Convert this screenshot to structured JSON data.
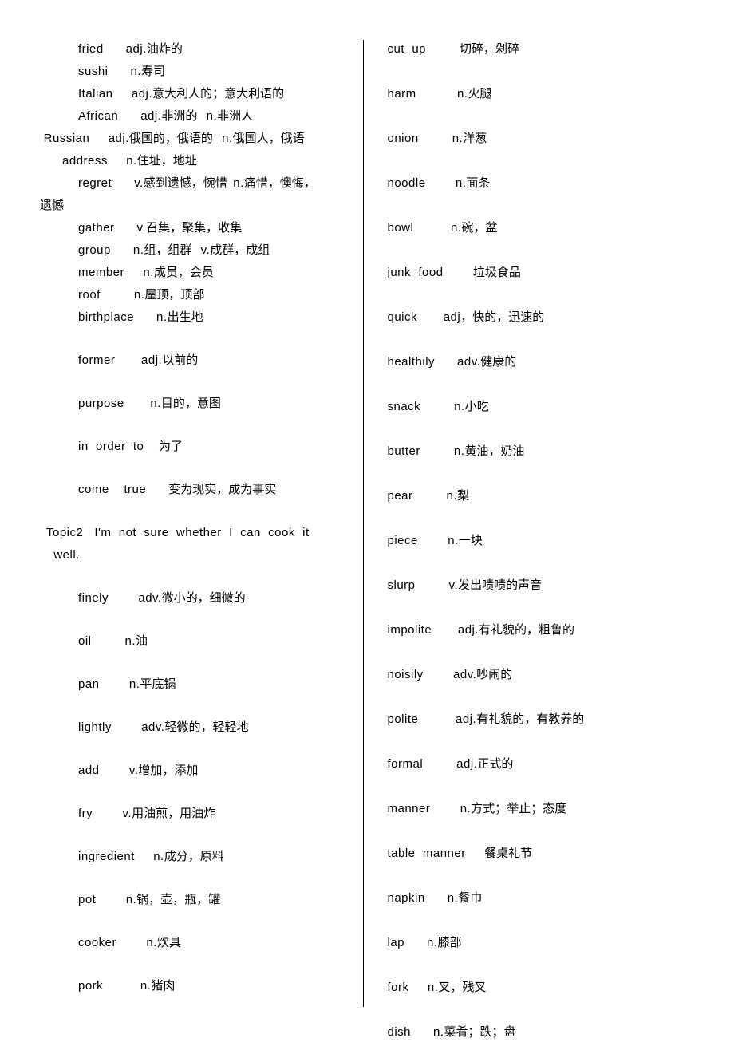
{
  "left": [
    {
      "cls": "indent1 gap-s",
      "parts": [
        [
          "latin",
          "fried      adj."
        ],
        [
          "",
          "油炸的"
        ]
      ]
    },
    {
      "cls": "indent1 gap-s",
      "parts": [
        [
          "latin",
          "sushi      n."
        ],
        [
          "",
          "寿司"
        ]
      ]
    },
    {
      "cls": "indent1 gap-s",
      "parts": [
        [
          "latin",
          "Italian     adj."
        ],
        [
          "",
          "意大利人的；意大利语的"
        ]
      ]
    },
    {
      "cls": "indent1 gap-s",
      "parts": [
        [
          "latin",
          "African      adj."
        ],
        [
          "",
          "非洲的   "
        ],
        [
          "latin",
          "n."
        ],
        [
          "",
          "非洲人"
        ]
      ]
    },
    {
      "cls": "indent0 gap-s",
      "parts": [
        [
          "latin",
          " Russian     adj."
        ],
        [
          "",
          "俄国的，俄语的   "
        ],
        [
          "latin",
          "n."
        ],
        [
          "",
          "俄国人，俄语"
        ]
      ]
    },
    {
      "cls": "indent0 gap-s",
      "parts": [
        [
          "latin",
          "      address     n."
        ],
        [
          "",
          "住址，地址"
        ]
      ]
    },
    {
      "cls": "indent1 gap-s",
      "parts": [
        [
          "latin",
          "regret      v."
        ],
        [
          "",
          "感到遗憾，惋惜  "
        ],
        [
          "latin",
          "n."
        ],
        [
          "",
          "痛惜，懊悔，"
        ]
      ]
    },
    {
      "cls": "indent0 gap-s",
      "parts": [
        [
          "",
          "遗憾"
        ]
      ]
    },
    {
      "cls": "indent1 gap-s",
      "parts": [
        [
          "latin",
          "gather      v."
        ],
        [
          "",
          "召集，聚集，收集"
        ]
      ]
    },
    {
      "cls": "indent1 gap-s",
      "parts": [
        [
          "latin",
          "group      n."
        ],
        [
          "",
          "组，组群   "
        ],
        [
          "latin",
          "v."
        ],
        [
          "",
          "成群，成组"
        ]
      ]
    },
    {
      "cls": "indent1 gap-s",
      "parts": [
        [
          "latin",
          "member     n."
        ],
        [
          "",
          "成员，会员"
        ]
      ]
    },
    {
      "cls": "indent1 gap-s",
      "parts": [
        [
          "latin",
          "roof         n."
        ],
        [
          "",
          "屋顶，顶部"
        ]
      ]
    },
    {
      "cls": "indent1 gap-m",
      "parts": [
        [
          "latin",
          "birthplace      n."
        ],
        [
          "",
          "出生地"
        ]
      ]
    },
    {
      "cls": "indent1 gap-m",
      "parts": [
        [
          "latin",
          "former       adj."
        ],
        [
          "",
          "以前的"
        ]
      ]
    },
    {
      "cls": "indent1 gap-m",
      "parts": [
        [
          "latin",
          "purpose       n."
        ],
        [
          "",
          "目的，意图"
        ]
      ]
    },
    {
      "cls": "indent1 gap-m",
      "parts": [
        [
          "latin",
          "in  order  to    "
        ],
        [
          "",
          "为了"
        ]
      ]
    },
    {
      "cls": "indent1 gap-m",
      "parts": [
        [
          "latin",
          "come    true      "
        ],
        [
          "",
          "变为现实，成为事实"
        ]
      ]
    },
    {
      "cls": "indentT gap-s",
      "parts": [
        [
          "latin",
          "Topic2   I'm  not  sure  whether  I  can  cook  it"
        ]
      ]
    },
    {
      "cls": "indentT gap-m",
      "parts": [
        [
          "latin",
          "  well."
        ]
      ]
    },
    {
      "cls": "indent1 gap-m",
      "parts": [
        [
          "latin",
          "finely        adv."
        ],
        [
          "",
          "微小的，细微的"
        ]
      ]
    },
    {
      "cls": "indent1 gap-m",
      "parts": [
        [
          "latin",
          "oil         n."
        ],
        [
          "",
          "油"
        ]
      ]
    },
    {
      "cls": "indent1 gap-m",
      "parts": [
        [
          "latin",
          "pan        n."
        ],
        [
          "",
          "平底锅"
        ]
      ]
    },
    {
      "cls": "indent1 gap-m",
      "parts": [
        [
          "latin",
          "lightly        adv."
        ],
        [
          "",
          "轻微的，轻轻地"
        ]
      ]
    },
    {
      "cls": "indent1 gap-m",
      "parts": [
        [
          "latin",
          "add        v."
        ],
        [
          "",
          "增加，添加"
        ]
      ]
    },
    {
      "cls": "indent1 gap-m",
      "parts": [
        [
          "latin",
          "fry        v."
        ],
        [
          "",
          "用油煎，用油炸"
        ]
      ]
    },
    {
      "cls": "indent1 gap-m",
      "parts": [
        [
          "latin",
          "ingredient     n."
        ],
        [
          "",
          "成分，原料"
        ]
      ]
    },
    {
      "cls": "indent1 gap-m",
      "parts": [
        [
          "latin",
          "pot        n."
        ],
        [
          "",
          "锅，壶，瓶，罐"
        ]
      ]
    },
    {
      "cls": "indent1 gap-m",
      "parts": [
        [
          "latin",
          "cooker        n."
        ],
        [
          "",
          "炊具"
        ]
      ]
    },
    {
      "cls": "indent1 gap-m",
      "parts": [
        [
          "latin",
          "pork          n."
        ],
        [
          "",
          "猪肉"
        ]
      ]
    }
  ],
  "right": [
    {
      "cls": "gap-l",
      "parts": [
        [
          "latin",
          "cut  up         "
        ],
        [
          "",
          "切碎，剁碎"
        ]
      ]
    },
    {
      "cls": "gap-l",
      "parts": [
        [
          "latin",
          "harm           n."
        ],
        [
          "",
          "火腿"
        ]
      ]
    },
    {
      "cls": "gap-l",
      "parts": [
        [
          "latin",
          "onion         n."
        ],
        [
          "",
          "洋葱"
        ]
      ]
    },
    {
      "cls": "gap-l",
      "parts": [
        [
          "latin",
          "noodle        n."
        ],
        [
          "",
          "面条"
        ]
      ]
    },
    {
      "cls": "gap-l",
      "parts": [
        [
          "latin",
          "bowl          n."
        ],
        [
          "",
          "碗，盆"
        ]
      ]
    },
    {
      "cls": "gap-l",
      "parts": [
        [
          "latin",
          "junk  food        "
        ],
        [
          "",
          "垃圾食品"
        ]
      ]
    },
    {
      "cls": "gap-l",
      "parts": [
        [
          "latin",
          "quick       adj"
        ],
        [
          "",
          "，快的，迅速的"
        ]
      ]
    },
    {
      "cls": "gap-l",
      "parts": [
        [
          "latin",
          "healthily      adv."
        ],
        [
          "",
          "健康的"
        ]
      ]
    },
    {
      "cls": "gap-l",
      "parts": [
        [
          "latin",
          "snack         n."
        ],
        [
          "",
          "小吃"
        ]
      ]
    },
    {
      "cls": "gap-l",
      "parts": [
        [
          "latin",
          "butter         n."
        ],
        [
          "",
          "黄油，奶油"
        ]
      ]
    },
    {
      "cls": "gap-l",
      "parts": [
        [
          "latin",
          "pear         n."
        ],
        [
          "",
          "梨"
        ]
      ]
    },
    {
      "cls": "gap-l",
      "parts": [
        [
          "latin",
          "piece        n."
        ],
        [
          "",
          "一块"
        ]
      ]
    },
    {
      "cls": "gap-l",
      "parts": [
        [
          "latin",
          "slurp         v."
        ],
        [
          "",
          "发出啧啧的声音"
        ]
      ]
    },
    {
      "cls": "gap-l",
      "parts": [
        [
          "latin",
          "impolite       adj."
        ],
        [
          "",
          "有礼貌的，粗鲁的"
        ]
      ]
    },
    {
      "cls": "gap-l",
      "parts": [
        [
          "latin",
          "noisily        adv."
        ],
        [
          "",
          "吵闹的"
        ]
      ]
    },
    {
      "cls": "gap-l",
      "parts": [
        [
          "latin",
          "polite          adj."
        ],
        [
          "",
          "有礼貌的，有教养的"
        ]
      ]
    },
    {
      "cls": "gap-l",
      "parts": [
        [
          "latin",
          "formal         adj."
        ],
        [
          "",
          "正式的"
        ]
      ]
    },
    {
      "cls": "gap-l",
      "parts": [
        [
          "latin",
          "manner        n."
        ],
        [
          "",
          "方式；举止；态度"
        ]
      ]
    },
    {
      "cls": "gap-l",
      "parts": [
        [
          "latin",
          "table  manner     "
        ],
        [
          "",
          "餐桌礼节"
        ]
      ]
    },
    {
      "cls": "gap-l",
      "parts": [
        [
          "latin",
          "napkin      n."
        ],
        [
          "",
          "餐巾"
        ]
      ]
    },
    {
      "cls": "gap-l",
      "parts": [
        [
          "latin",
          "lap      n."
        ],
        [
          "",
          "膝部"
        ]
      ]
    },
    {
      "cls": "gap-l",
      "parts": [
        [
          "latin",
          "fork     n."
        ],
        [
          "",
          "叉，残叉"
        ]
      ]
    },
    {
      "cls": "gap-l",
      "parts": [
        [
          "latin",
          "dish      n."
        ],
        [
          "",
          "菜肴；跌；盘"
        ]
      ]
    }
  ]
}
